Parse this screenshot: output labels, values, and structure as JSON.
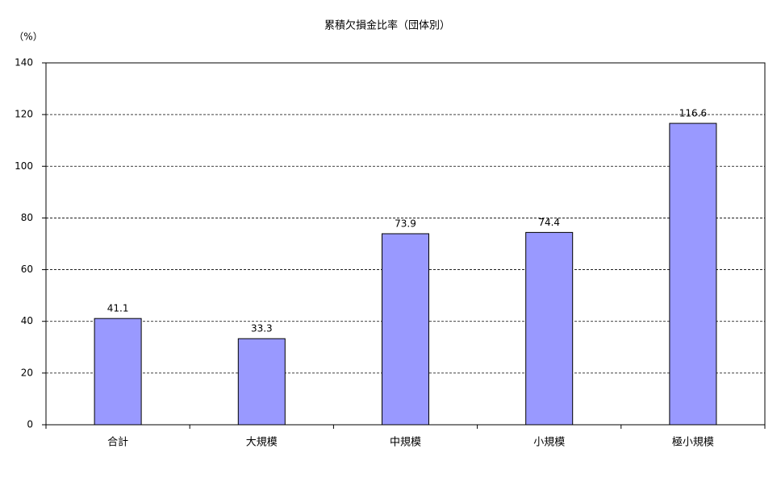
{
  "chart_data": {
    "type": "bar",
    "title": "累積欠損金比率（団体別）",
    "y_label": "（%）",
    "categories": [
      "合計",
      "大規模",
      "中規模",
      "小規模",
      "極小規模"
    ],
    "values": [
      41.1,
      33.3,
      73.9,
      74.4,
      116.6
    ],
    "color": "#9999ff",
    "ylim": [
      0,
      140
    ],
    "yticks": [
      0,
      20,
      40,
      60,
      80,
      100,
      120,
      140
    ],
    "grid": true
  }
}
